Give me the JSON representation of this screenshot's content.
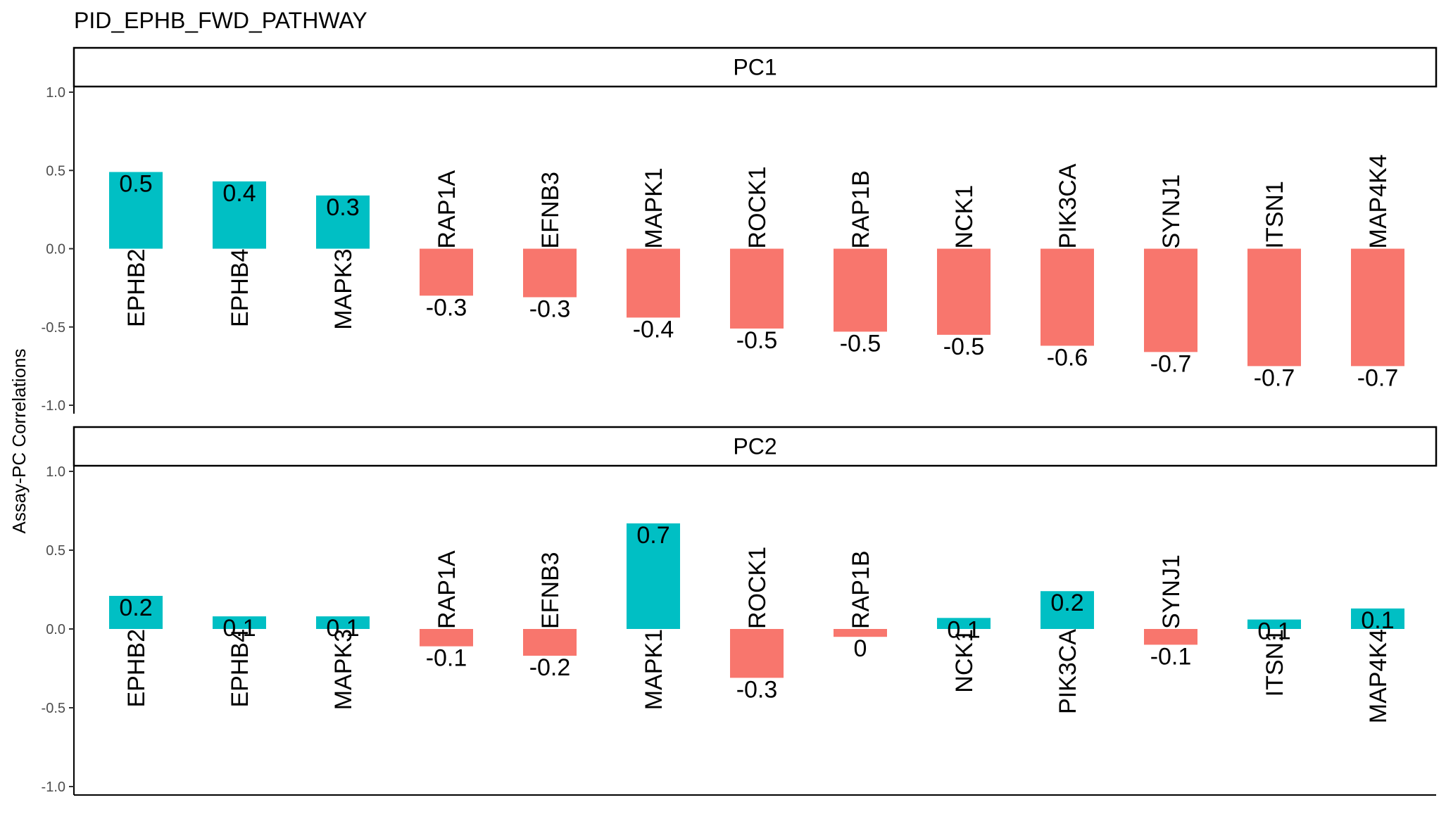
{
  "chart_data": {
    "type": "bar",
    "title": "PID_EPHB_FWD_PATHWAY",
    "ylabel": "Assay-PC Correlations",
    "xlabel": "",
    "ylim": [
      -1.0,
      1.0
    ],
    "yticks": [
      1.0,
      0.5,
      0.0,
      -0.5,
      -1.0
    ],
    "ytick_labels": [
      "1.0",
      "0.5",
      "0.0",
      "-0.5",
      "-1.0"
    ],
    "grid": false,
    "legend": "none",
    "colors": {
      "positive": "#00BFC4",
      "negative": "#F8766D"
    },
    "categories": [
      "EPHB2",
      "EPHB4",
      "MAPK3",
      "RAP1A",
      "EFNB3",
      "MAPK1",
      "ROCK1",
      "RAP1B",
      "NCK1",
      "PIK3CA",
      "SYNJ1",
      "ITSN1",
      "MAP4K4"
    ],
    "panels": [
      {
        "strip": "PC1",
        "values": [
          0.49,
          0.43,
          0.34,
          -0.3,
          -0.31,
          -0.44,
          -0.51,
          -0.53,
          -0.55,
          -0.62,
          -0.66,
          -0.75,
          -0.75
        ],
        "labels": [
          "0.5",
          "0.4",
          "0.3",
          "-0.3",
          "-0.3",
          "-0.4",
          "-0.5",
          "-0.5",
          "-0.5",
          "-0.6",
          "-0.7",
          "-0.7",
          "-0.7"
        ]
      },
      {
        "strip": "PC2",
        "values": [
          0.21,
          0.08,
          0.08,
          -0.11,
          -0.17,
          0.67,
          -0.31,
          -0.05,
          0.07,
          0.24,
          -0.1,
          0.06,
          0.13
        ],
        "labels": [
          "0.2",
          "0.1",
          "0.1",
          "-0.1",
          "-0.2",
          "0.7",
          "-0.3",
          "0",
          "0.1",
          "0.2",
          "-0.1",
          "0.1",
          "0.1"
        ]
      }
    ]
  }
}
